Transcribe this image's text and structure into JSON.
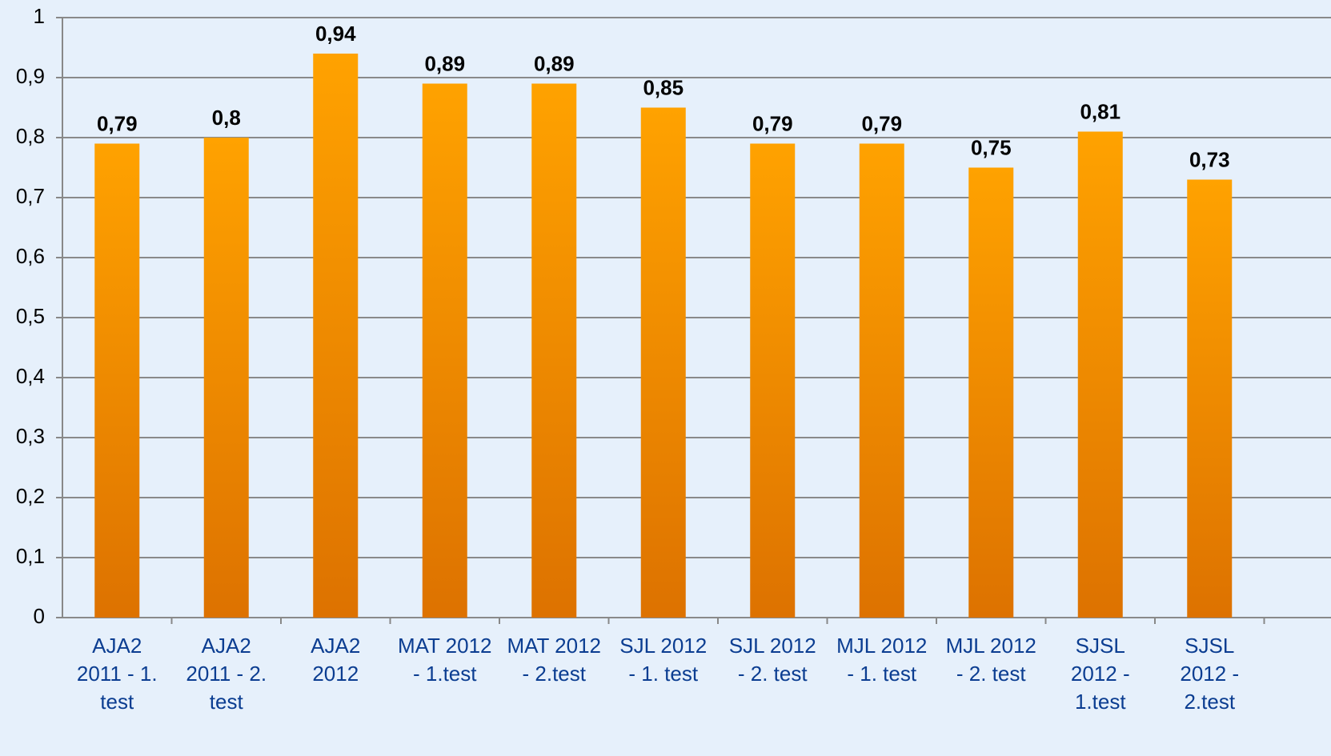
{
  "chart_data": {
    "type": "bar",
    "categories": [
      "AJA2 2011 - 1. test",
      "AJA2 2011 - 2. test",
      "AJA2 2012",
      "MAT 2012 - 1.test",
      "MAT 2012 - 2.test",
      "SJL 2012 - 1. test",
      "SJL 2012 - 2. test",
      "MJL 2012 - 1. test",
      "MJL 2012 - 2. test",
      "SJSL 2012 - 1.test",
      "SJSL 2012 - 2.test"
    ],
    "values": [
      0.79,
      0.8,
      0.94,
      0.89,
      0.89,
      0.85,
      0.79,
      0.79,
      0.75,
      0.81,
      0.73
    ],
    "value_labels": [
      "0,79",
      "0,8",
      "0,94",
      "0,89",
      "0,89",
      "0,85",
      "0,79",
      "0,79",
      "0,75",
      "0,81",
      "0,73"
    ],
    "color": "#f59500",
    "ylim": [
      0,
      1
    ],
    "yticks": [
      0,
      {
        "value": 0.1,
        "label": "0,1"
      },
      {
        "value": 0.2,
        "label": "0,2"
      },
      {
        "value": 0.3,
        "label": "0,3"
      },
      {
        "value": 0.4,
        "label": "0,4"
      },
      {
        "value": 0.5,
        "label": "0,5"
      },
      {
        "value": 0.6,
        "label": "0,6"
      },
      {
        "value": 0.7,
        "label": "0,7"
      },
      {
        "value": 0.8,
        "label": "0,8"
      },
      {
        "value": 0.9,
        "label": "0,9"
      },
      1
    ],
    "grid": true
  }
}
